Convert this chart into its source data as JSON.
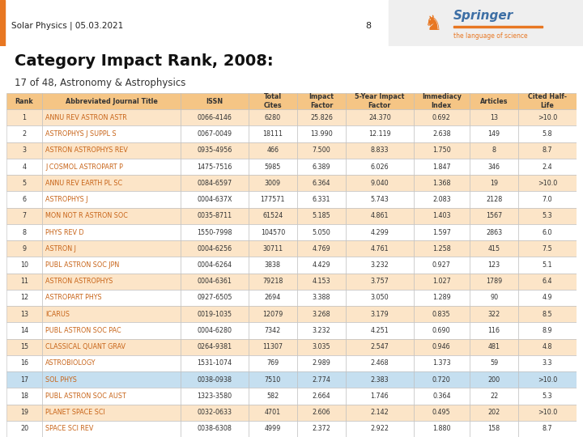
{
  "header_text": "Solar Physics | 05.03.2021",
  "page_number": "8",
  "title": "Category Impact Rank, 2008:",
  "subtitle": "17 of 48, Astronomy & Astrophysics",
  "col_headers": [
    "Rank",
    "Abbreviated Journal Title",
    "ISSN",
    "Total\nCites",
    "Impact\nFactor",
    "5-Year Impact\nFactor",
    "Immediacy\nIndex",
    "Articles",
    "Cited Half-\nLife"
  ],
  "highlighted_row": 16,
  "rows": [
    [
      1,
      "ANNU REV ASTRON ASTR",
      "0066-4146",
      "6280",
      "25.826",
      "24.370",
      "0.692",
      "13",
      ">10.0"
    ],
    [
      2,
      "ASTROPHYS J SUPPL S",
      "0067-0049",
      "18111",
      "13.990",
      "12.119",
      "2.638",
      "149",
      "5.8"
    ],
    [
      3,
      "ASTRON ASTROPHYS REV",
      "0935-4956",
      "466",
      "7.500",
      "8.833",
      "1.750",
      "8",
      "8.7"
    ],
    [
      4,
      "J COSMOL ASTROPART P",
      "1475-7516",
      "5985",
      "6.389",
      "6.026",
      "1.847",
      "346",
      "2.4"
    ],
    [
      5,
      "ANNU REV EARTH PL SC",
      "0084-6597",
      "3009",
      "6.364",
      "9.040",
      "1.368",
      "19",
      ">10.0"
    ],
    [
      6,
      "ASTROPHYS J",
      "0004-637X",
      "177571",
      "6.331",
      "5.743",
      "2.083",
      "2128",
      "7.0"
    ],
    [
      7,
      "MON NOT R ASTRON SOC",
      "0035-8711",
      "61524",
      "5.185",
      "4.861",
      "1.403",
      "1567",
      "5.3"
    ],
    [
      8,
      "PHYS REV D",
      "1550-7998",
      "104570",
      "5.050",
      "4.299",
      "1.597",
      "2863",
      "6.0"
    ],
    [
      9,
      "ASTRON J",
      "0004-6256",
      "30711",
      "4.769",
      "4.761",
      "1.258",
      "415",
      "7.5"
    ],
    [
      10,
      "PUBL ASTRON SOC JPN",
      "0004-6264",
      "3838",
      "4.429",
      "3.232",
      "0.927",
      "123",
      "5.1"
    ],
    [
      11,
      "ASTRON ASTROPHYS",
      "0004-6361",
      "79218",
      "4.153",
      "3.757",
      "1.027",
      "1789",
      "6.4"
    ],
    [
      12,
      "ASTROPART PHYS",
      "0927-6505",
      "2694",
      "3.388",
      "3.050",
      "1.289",
      "90",
      "4.9"
    ],
    [
      13,
      "ICARUS",
      "0019-1035",
      "12079",
      "3.268",
      "3.179",
      "0.835",
      "322",
      "8.5"
    ],
    [
      14,
      "PUBL ASTRON SOC PAC",
      "0004-6280",
      "7342",
      "3.232",
      "4.251",
      "0.690",
      "116",
      "8.9"
    ],
    [
      15,
      "CLASSICAL QUANT GRAV",
      "0264-9381",
      "11307",
      "3.035",
      "2.547",
      "0.946",
      "481",
      "4.8"
    ],
    [
      16,
      "ASTROBIOLOGY",
      "1531-1074",
      "769",
      "2.989",
      "2.468",
      "1.373",
      "59",
      "3.3"
    ],
    [
      17,
      "SOL PHYS",
      "0038-0938",
      "7510",
      "2.774",
      "2.383",
      "0.720",
      "200",
      ">10.0"
    ],
    [
      18,
      "PUBL ASTRON SOC AUST",
      "1323-3580",
      "582",
      "2.664",
      "1.746",
      "0.364",
      "22",
      "5.3"
    ],
    [
      19,
      "PLANET SPACE SCI",
      "0032-0633",
      "4701",
      "2.606",
      "2.142",
      "0.495",
      "202",
      ">10.0"
    ],
    [
      20,
      "SPACE SCI REV",
      "0038-6308",
      "4999",
      "2.372",
      "2.922",
      "1.880",
      "158",
      "8.7"
    ]
  ],
  "header_bg": "#e2e2e2",
  "orange_bar_color": "#e87722",
  "springer_orange": "#e87722",
  "springer_blue": "#3d6fa5",
  "springer_right_bg": "#efefef",
  "table_header_bg": "#f5c585",
  "row_bg_even": "#fce5c8",
  "row_bg_odd": "#ffffff",
  "row_bg_highlight": "#c5dff0",
  "text_color_link": "#c86418",
  "text_color_dark": "#333333",
  "fig_width": 7.2,
  "fig_height": 5.4,
  "dpi": 100
}
